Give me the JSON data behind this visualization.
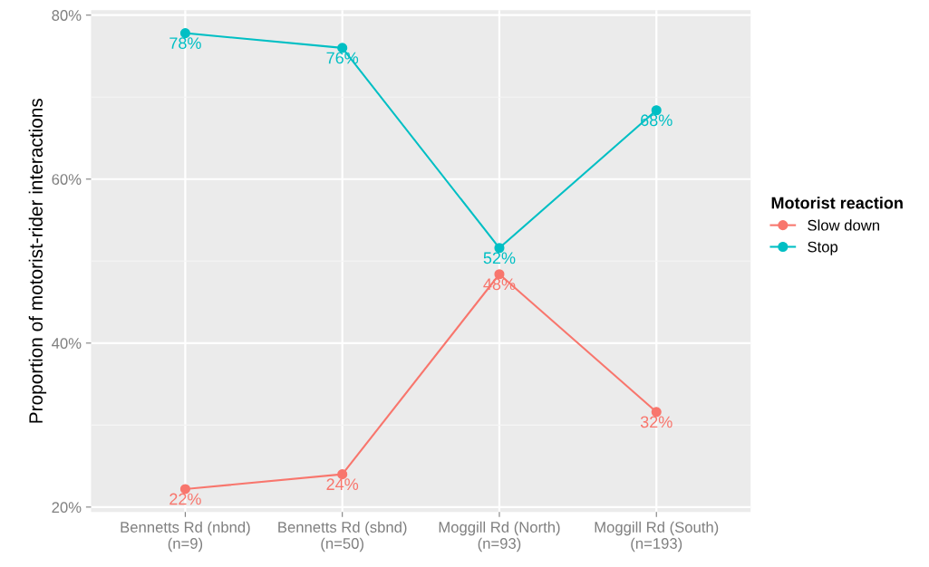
{
  "chart_data": {
    "type": "line",
    "ylabel": "Proportion of motorist-rider interactions",
    "legend_title": "Motorist reaction",
    "categories": [
      "Bennetts Rd (nbnd)\n(n=9)",
      "Bennetts Rd (sbnd)\n(n=50)",
      "Moggill Rd (North)\n(n=93)",
      "Moggill Rd (South)\n(n=193)"
    ],
    "series": [
      {
        "name": "Slow down",
        "color": "#f8766d",
        "values": [
          22.2,
          24,
          48.4,
          31.6
        ],
        "value_labels": [
          "22%",
          "24%",
          "48%",
          "32%"
        ]
      },
      {
        "name": "Stop",
        "color": "#00bfc4",
        "values": [
          77.8,
          76,
          51.6,
          68.4
        ],
        "value_labels": [
          "78%",
          "76%",
          "52%",
          "68%"
        ]
      }
    ],
    "ylim": [
      19.4,
      80.6
    ],
    "yticks": [
      {
        "value": 20,
        "label": "20%"
      },
      {
        "value": 30,
        "label": null
      },
      {
        "value": 40,
        "label": "40%"
      },
      {
        "value": 50,
        "label": null
      },
      {
        "value": 60,
        "label": "60%"
      },
      {
        "value": 70,
        "label": null
      },
      {
        "value": 80,
        "label": "80%"
      }
    ],
    "grid": true,
    "legend": "right",
    "marker": "circle",
    "line_style": "solid"
  }
}
